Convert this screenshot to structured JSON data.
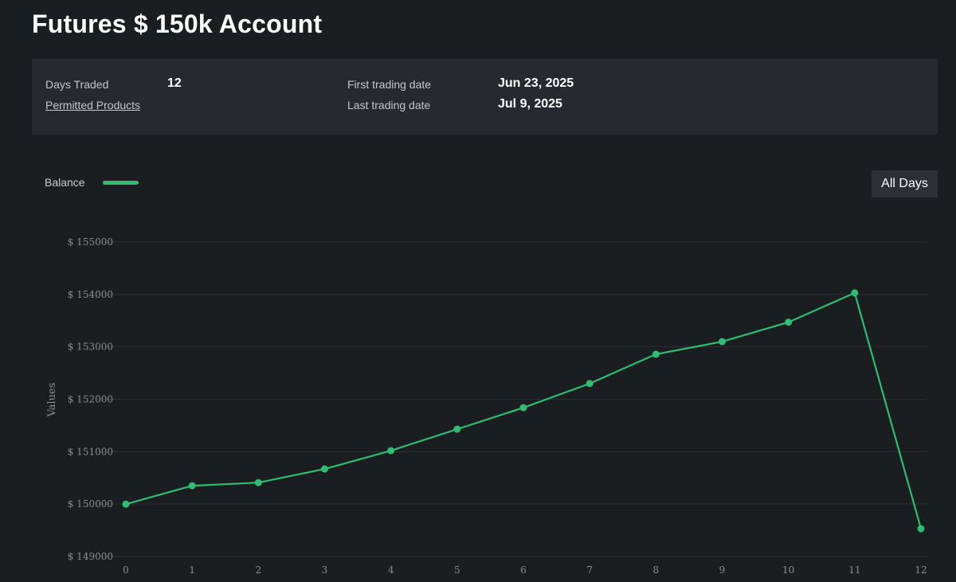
{
  "header": {
    "title": "Futures $ 150k Account"
  },
  "info": {
    "days_traded_label": "Days Traded",
    "days_traded_value": "12",
    "permitted_products_link": "Permitted Products",
    "first_date_label": "First trading date",
    "first_date_value": "Jun 23, 2025",
    "last_date_label": "Last trading date",
    "last_date_value": "Jul 9, 2025"
  },
  "legend": {
    "label": "Balance",
    "color": "#2ebd72"
  },
  "controls": {
    "range_label": "All Days"
  },
  "chart_data": {
    "type": "line",
    "x": [
      0,
      1,
      2,
      3,
      4,
      5,
      6,
      7,
      8,
      9,
      10,
      11,
      12
    ],
    "series": [
      {
        "name": "Balance",
        "values": [
          150000,
          150350,
          150410,
          150670,
          151020,
          151430,
          151840,
          152300,
          152860,
          153100,
          153470,
          154030,
          149530
        ]
      }
    ],
    "ylabel": "Values",
    "ylim": [
      149000,
      155000
    ],
    "yticks": [
      149000,
      150000,
      151000,
      152000,
      153000,
      154000,
      155000
    ],
    "ytick_labels": [
      "$ 149000",
      "$ 150000",
      "$ 151000",
      "$ 152000",
      "$ 153000",
      "$ 154000",
      "$ 155000"
    ],
    "xticks": [
      "0",
      "1",
      "2",
      "3",
      "4",
      "5",
      "6",
      "7",
      "8",
      "9",
      "10",
      "11",
      "12"
    ],
    "grid": true,
    "line_color": "#2ebd72",
    "grid_color": "#2c3034",
    "legend_position": "top-left"
  }
}
